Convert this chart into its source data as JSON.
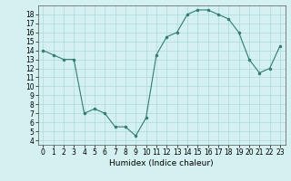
{
  "x": [
    0,
    1,
    2,
    3,
    4,
    5,
    6,
    7,
    8,
    9,
    10,
    11,
    12,
    13,
    14,
    15,
    16,
    17,
    18,
    19,
    20,
    21,
    22,
    23
  ],
  "y": [
    14,
    13.5,
    13,
    13,
    7,
    7.5,
    7,
    5.5,
    5.5,
    4.5,
    6.5,
    13.5,
    15.5,
    16,
    18,
    18.5,
    18.5,
    18,
    17.5,
    16,
    13,
    11.5,
    12,
    14.5
  ],
  "line_color": "#2e7d6e",
  "marker_color": "#2e7d6e",
  "bg_color": "#d4f0f0",
  "grid_color": "#b0d8d8",
  "xlabel": "Humidex (Indice chaleur)",
  "xlim": [
    -0.5,
    23.5
  ],
  "ylim": [
    3.5,
    19
  ],
  "yticks": [
    4,
    5,
    6,
    7,
    8,
    9,
    10,
    11,
    12,
    13,
    14,
    15,
    16,
    17,
    18
  ],
  "xticks": [
    0,
    1,
    2,
    3,
    4,
    5,
    6,
    7,
    8,
    9,
    10,
    11,
    12,
    13,
    14,
    15,
    16,
    17,
    18,
    19,
    20,
    21,
    22,
    23
  ],
  "tick_fontsize": 5.5,
  "label_fontsize": 6.5
}
